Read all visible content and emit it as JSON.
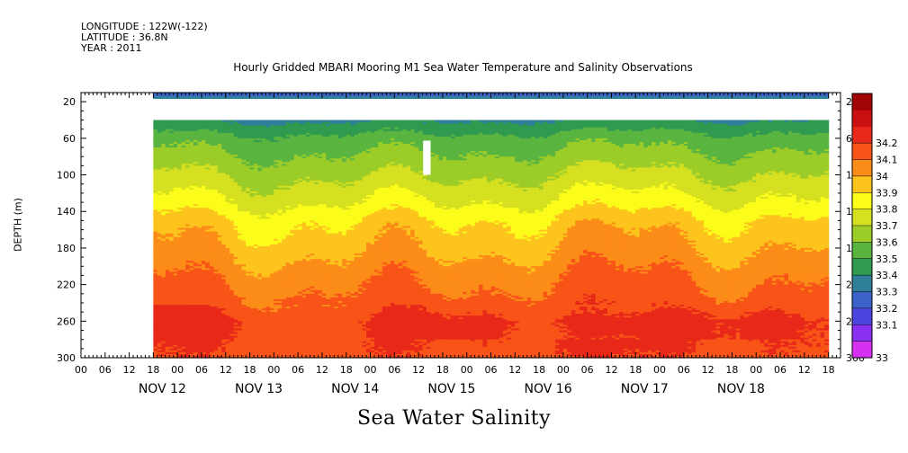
{
  "meta": {
    "longitude": "LONGITUDE : 122W(-122)",
    "latitude": "LATITUDE : 36.8N",
    "year": "YEAR : 2011"
  },
  "chart_data": {
    "type": "heatmap",
    "title": "Hourly Gridded MBARI Mooring M1 Sea Water Temperature and Salinity Observations",
    "bottom_title": "Sea Water Salinity",
    "ylabel": "DEPTH (m)",
    "xlabel": "",
    "y_ticks": [
      20,
      60,
      100,
      140,
      180,
      220,
      260,
      300
    ],
    "ylim": [
      300,
      10
    ],
    "y_reversed": true,
    "x_hour_ticks": [
      "00",
      "06",
      "12",
      "18",
      "00",
      "06",
      "12",
      "18",
      "00",
      "06",
      "12",
      "18",
      "00",
      "06",
      "12",
      "18",
      "00",
      "06",
      "12",
      "18",
      "00",
      "06",
      "12",
      "18",
      "00",
      "06",
      "12",
      "18",
      "00",
      "06",
      "12",
      "18"
    ],
    "x_day_labels": [
      "NOV 12",
      "NOV 13",
      "NOV 14",
      "NOV 15",
      "NOV 16",
      "NOV 17",
      "NOV 18"
    ],
    "colorbar": {
      "levels": [
        33,
        33.1,
        33.2,
        33.3,
        33.4,
        33.5,
        33.6,
        33.7,
        33.8,
        33.9,
        34,
        34.1,
        34.2
      ],
      "labels": [
        "33",
        "33.1",
        "33.2",
        "33.3",
        "33.4",
        "33.5",
        "33.6",
        "33.7",
        "33.8",
        "33.9",
        "34",
        "34.1",
        "34.2"
      ],
      "colors": [
        "#d630f0",
        "#8a30f0",
        "#4c44e0",
        "#3a62c8",
        "#2f7f9a",
        "#2f9a50",
        "#5ab440",
        "#9ccc28",
        "#d4e020",
        "#fcfc1a",
        "#fcc41c",
        "#fc8c18",
        "#f85418",
        "#e82818",
        "#c81010",
        "#a00404"
      ]
    },
    "data_extent": {
      "x_hour_start": 12,
      "x_hour_end": 180,
      "top_row_depth": [
        10,
        14
      ],
      "gap_depth": [
        14,
        40
      ],
      "data_depth": [
        40,
        300
      ]
    },
    "salinity_profile": [
      {
        "depth": 12,
        "salinity": 33.25
      },
      {
        "depth": 40,
        "salinity": 33.4
      },
      {
        "depth": 60,
        "salinity": 33.55
      },
      {
        "depth": 100,
        "salinity": 33.7
      },
      {
        "depth": 130,
        "salinity": 33.82
      },
      {
        "depth": 150,
        "salinity": 33.92
      },
      {
        "depth": 180,
        "salinity": 34.0
      },
      {
        "depth": 210,
        "salinity": 34.08
      },
      {
        "depth": 240,
        "salinity": 34.15
      },
      {
        "depth": 260,
        "salinity": 34.22
      },
      {
        "depth": 300,
        "salinity": 34.18
      }
    ]
  }
}
